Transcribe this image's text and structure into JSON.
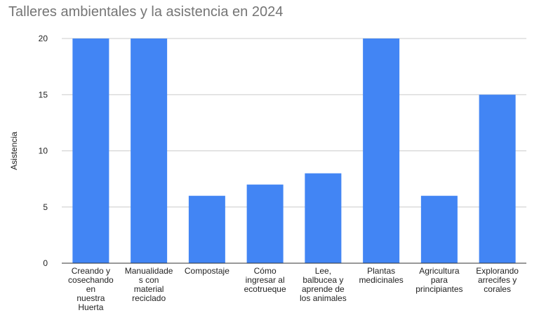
{
  "chart_data": {
    "type": "bar",
    "title": "Talleres ambientales y la asistencia en 2024",
    "xlabel": "",
    "ylabel": "Asistencia",
    "ylim": [
      0,
      20
    ],
    "yticks": [
      0,
      5,
      10,
      15,
      20
    ],
    "grid": true,
    "categories": [
      "Creando y cosechando en nuestra Huerta",
      "Manualidades con material reciclado",
      "Compostaje",
      "Cómo ingresar al ecotrueque",
      "Lee, balbucea y aprende de los animales",
      "Plantas medicinales",
      "Agricultura para principiantes",
      "Explorando arrecifes y corales"
    ],
    "category_label_lines": [
      [
        "Creando y",
        "cosechando",
        "en",
        "nuestra",
        "Huerta"
      ],
      [
        "Manualidade",
        "s con",
        "material",
        "reciclado"
      ],
      [
        "Compostaje"
      ],
      [
        "Cómo",
        "ingresar al",
        "ecotrueque"
      ],
      [
        "Lee,",
        "balbucea y",
        "aprende de",
        "los animales"
      ],
      [
        "Plantas",
        "medicinales"
      ],
      [
        "Agricultura",
        "para",
        "principiantes"
      ],
      [
        "Explorando",
        "arrecifes y",
        "corales"
      ]
    ],
    "series": [
      {
        "name": "Asistencia",
        "values": [
          20,
          20,
          6,
          7,
          8,
          20,
          6,
          15
        ]
      }
    ],
    "colors": {
      "bar": "#4285f4",
      "grid": "#cccccc",
      "axis": "#333333"
    }
  }
}
